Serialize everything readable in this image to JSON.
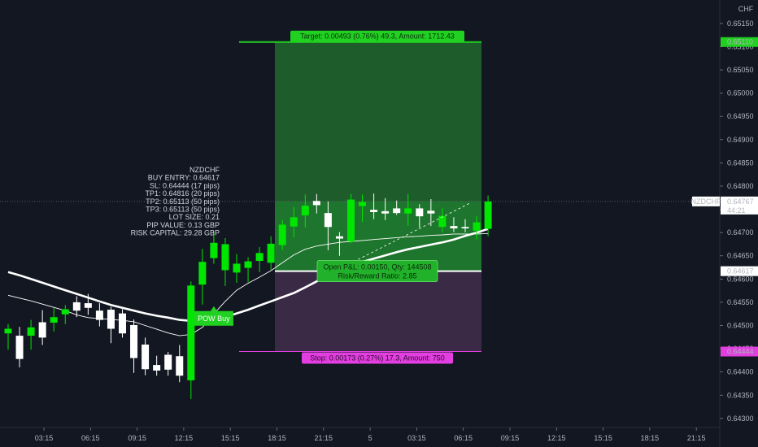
{
  "symbol_info": {
    "lines": [
      "NZDCHF",
      "BUY ENTRY: 0.64617",
      "SL: 0.64444 (17 pips)",
      "TP1: 0.64816 (20 pips)",
      "TP2: 0.65113 (50 pips)",
      "TP3: 0.65113 (50 pips)",
      "LOT SIZE: 0.21",
      "PIP VALUE: 0.13 GBP",
      "RISK CAPITAL: 29.28 GBP"
    ]
  },
  "currency_label": "CHF",
  "position": {
    "target_label": "Target: 0.00493 (0.76%) 49.3, Amount: 1712.43",
    "stop_label": "Stop: 0.00173 (0.27%) 17.3, Amount: 750",
    "pnl_label": "Open P&L: 0.00150, Qty: 144508",
    "rr_label": "Risk/Reward Ratio: 2.85",
    "entry": 0.64617,
    "target": 0.6511,
    "stop": 0.64444,
    "start_bar": 22,
    "end_bar": 42
  },
  "pow_buy_label": "POW Buy",
  "price_labels": {
    "target": "0.65110",
    "current": "0.64767",
    "entry": "0.64617",
    "stop": "0.64444",
    "symbol": "NZDCHF",
    "countdown": "44:21"
  },
  "colors": {
    "background": "#131722",
    "bull": "#00e600",
    "bear": "#ffffff",
    "target_zone": "#1f5c2b",
    "stop_zone": "#3a2a45",
    "target_tag": "#21d121",
    "stop_tag": "#e23ee0",
    "entry_line": "#ffffff"
  },
  "chart_data": {
    "type": "candlestick",
    "x_labels": [
      "03:15",
      "06:15",
      "09:15",
      "12:15",
      "15:15",
      "18:15",
      "21:15",
      "5",
      "03:15",
      "06:15",
      "09:15",
      "12:15",
      "15:15",
      "18:15",
      "21:15"
    ],
    "y_ticks": [
      0.643,
      0.6435,
      0.644,
      0.6445,
      0.645,
      0.6455,
      0.646,
      0.6465,
      0.647,
      0.6475,
      0.648,
      0.6485,
      0.649,
      0.6495,
      0.65,
      0.6505,
      0.651,
      0.6515
    ],
    "ylim": [
      0.64298,
      0.65162
    ],
    "candles": [
      {
        "o": 0.64483,
        "h": 0.64503,
        "l": 0.64448,
        "c": 0.64493
      },
      {
        "o": 0.64478,
        "h": 0.64497,
        "l": 0.6441,
        "c": 0.64428
      },
      {
        "o": 0.64478,
        "h": 0.64512,
        "l": 0.64448,
        "c": 0.64496
      },
      {
        "o": 0.64507,
        "h": 0.64533,
        "l": 0.64458,
        "c": 0.64474
      },
      {
        "o": 0.64506,
        "h": 0.64538,
        "l": 0.64487,
        "c": 0.64518
      },
      {
        "o": 0.64524,
        "h": 0.64544,
        "l": 0.64503,
        "c": 0.64535
      },
      {
        "o": 0.6455,
        "h": 0.64563,
        "l": 0.64518,
        "c": 0.64532
      },
      {
        "o": 0.64548,
        "h": 0.64568,
        "l": 0.64523,
        "c": 0.64538
      },
      {
        "o": 0.64532,
        "h": 0.64548,
        "l": 0.64498,
        "c": 0.64512
      },
      {
        "o": 0.64534,
        "h": 0.6454,
        "l": 0.64462,
        "c": 0.64493
      },
      {
        "o": 0.64526,
        "h": 0.64535,
        "l": 0.64474,
        "c": 0.64483
      },
      {
        "o": 0.64501,
        "h": 0.64513,
        "l": 0.64398,
        "c": 0.6443
      },
      {
        "o": 0.64459,
        "h": 0.64474,
        "l": 0.64393,
        "c": 0.64406
      },
      {
        "o": 0.64415,
        "h": 0.64435,
        "l": 0.64392,
        "c": 0.64403
      },
      {
        "o": 0.64437,
        "h": 0.64443,
        "l": 0.64392,
        "c": 0.64405
      },
      {
        "o": 0.64434,
        "h": 0.64458,
        "l": 0.64378,
        "c": 0.64392
      },
      {
        "o": 0.64382,
        "h": 0.64595,
        "l": 0.64342,
        "c": 0.64586
      },
      {
        "o": 0.64588,
        "h": 0.64665,
        "l": 0.64545,
        "c": 0.64637
      },
      {
        "o": 0.64645,
        "h": 0.64702,
        "l": 0.64633,
        "c": 0.64678
      },
      {
        "o": 0.64619,
        "h": 0.64688,
        "l": 0.64585,
        "c": 0.64675
      },
      {
        "o": 0.64614,
        "h": 0.64654,
        "l": 0.64592,
        "c": 0.64633
      },
      {
        "o": 0.64624,
        "h": 0.64647,
        "l": 0.64593,
        "c": 0.64638
      },
      {
        "o": 0.64639,
        "h": 0.64669,
        "l": 0.64615,
        "c": 0.64656
      },
      {
        "o": 0.64635,
        "h": 0.64692,
        "l": 0.6462,
        "c": 0.64676
      },
      {
        "o": 0.64673,
        "h": 0.64727,
        "l": 0.64662,
        "c": 0.64717
      },
      {
        "o": 0.64713,
        "h": 0.64755,
        "l": 0.6469,
        "c": 0.64733
      },
      {
        "o": 0.64737,
        "h": 0.64782,
        "l": 0.64711,
        "c": 0.64758
      },
      {
        "o": 0.64768,
        "h": 0.64783,
        "l": 0.64741,
        "c": 0.64759
      },
      {
        "o": 0.64742,
        "h": 0.64767,
        "l": 0.64662,
        "c": 0.64712
      },
      {
        "o": 0.64692,
        "h": 0.64701,
        "l": 0.6465,
        "c": 0.64687
      },
      {
        "o": 0.64681,
        "h": 0.64783,
        "l": 0.64677,
        "c": 0.64771
      },
      {
        "o": 0.64757,
        "h": 0.64782,
        "l": 0.64723,
        "c": 0.64766
      },
      {
        "o": 0.64749,
        "h": 0.64784,
        "l": 0.64729,
        "c": 0.64744
      },
      {
        "o": 0.64746,
        "h": 0.64774,
        "l": 0.64727,
        "c": 0.64741
      },
      {
        "o": 0.64752,
        "h": 0.64769,
        "l": 0.64738,
        "c": 0.64742
      },
      {
        "o": 0.64741,
        "h": 0.64783,
        "l": 0.64715,
        "c": 0.64752
      },
      {
        "o": 0.64752,
        "h": 0.64761,
        "l": 0.64711,
        "c": 0.64735
      },
      {
        "o": 0.64747,
        "h": 0.64772,
        "l": 0.64714,
        "c": 0.64741
      },
      {
        "o": 0.64712,
        "h": 0.64752,
        "l": 0.64701,
        "c": 0.64736
      },
      {
        "o": 0.64714,
        "h": 0.64733,
        "l": 0.64701,
        "c": 0.64709
      },
      {
        "o": 0.64712,
        "h": 0.64729,
        "l": 0.64701,
        "c": 0.64709
      },
      {
        "o": 0.64704,
        "h": 0.64735,
        "l": 0.64685,
        "c": 0.64722
      },
      {
        "o": 0.64708,
        "h": 0.6478,
        "l": 0.64692,
        "c": 0.64767
      }
    ],
    "ma_slow": [
      0.64615,
      0.64608,
      0.646,
      0.64592,
      0.64584,
      0.64576,
      0.64568,
      0.6456,
      0.64552,
      0.64544,
      0.64538,
      0.64532,
      0.64526,
      0.64521,
      0.64517,
      0.64512,
      0.6451,
      0.64509,
      0.64511,
      0.64518,
      0.64526,
      0.64534,
      0.64543,
      0.64552,
      0.64561,
      0.6457,
      0.64582,
      0.64595,
      0.64609,
      0.6462,
      0.64629,
      0.64637,
      0.64644,
      0.64651,
      0.64658,
      0.64664,
      0.64669,
      0.64674,
      0.64679,
      0.64685,
      0.64693,
      0.647,
      0.64708
    ],
    "ma_fast": [
      0.64565,
      0.64559,
      0.64553,
      0.64546,
      0.64539,
      0.64532,
      0.64523,
      0.64517,
      0.64515,
      0.64513,
      0.64511,
      0.64508,
      0.645,
      0.64492,
      0.64484,
      0.64478,
      0.64481,
      0.64496,
      0.64525,
      0.64552,
      0.64576,
      0.64591,
      0.64604,
      0.64618,
      0.64635,
      0.64652,
      0.64664,
      0.64671,
      0.64675,
      0.64679,
      0.64681,
      0.64683,
      0.64685,
      0.64687,
      0.64689,
      0.64691,
      0.64692,
      0.64694,
      0.64695,
      0.64697,
      0.64697,
      0.64697,
      0.64698
    ],
    "pow_buy_bar": 18
  }
}
